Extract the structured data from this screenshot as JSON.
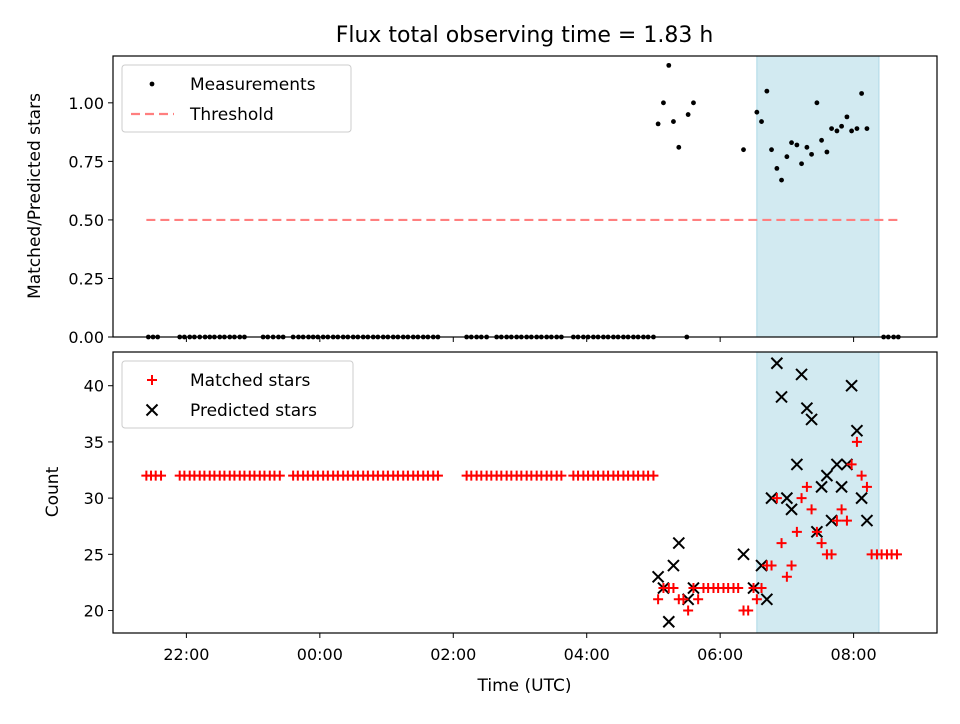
{
  "chart_data": [
    {
      "type": "scatter",
      "title": "Flux total observing time = 1.83 h",
      "ylabel": "Matched/Predicted stars",
      "ylim": [
        0,
        1.2
      ],
      "yticks": [
        0.0,
        0.25,
        0.5,
        0.75,
        1.0
      ],
      "ytick_labels": [
        "0.00",
        "0.25",
        "0.50",
        "0.75",
        "1.00"
      ],
      "highlight_band": {
        "x": [
          6.55,
          8.38
        ],
        "color": "#add8e6"
      },
      "colors": {
        "measurements": "#000000",
        "threshold": "#ff7f7f"
      },
      "legend": {
        "placement": "top-left",
        "entries": [
          "Measurements",
          "Threshold"
        ]
      },
      "series": [
        {
          "name": "Measurements",
          "marker": "dot",
          "x_zero": [
            -2.57,
            -2.5,
            -2.43,
            -2.1,
            -2.03,
            -1.95,
            -1.88,
            -1.8,
            -1.72,
            -1.65,
            -1.58,
            -1.5,
            -1.43,
            -1.35,
            -1.28,
            -1.2,
            -1.13,
            -0.85,
            -0.78,
            -0.7,
            -0.62,
            -0.55,
            -0.4,
            -0.32,
            -0.25,
            -0.17,
            -0.1,
            -0.03,
            0.05,
            0.12,
            0.2,
            0.27,
            0.35,
            0.42,
            0.5,
            0.57,
            0.65,
            0.72,
            0.8,
            0.87,
            0.95,
            1.02,
            1.1,
            1.17,
            1.25,
            1.32,
            1.4,
            1.47,
            1.55,
            1.62,
            1.7,
            1.77,
            2.2,
            2.27,
            2.35,
            2.42,
            2.5,
            2.65,
            2.72,
            2.8,
            2.87,
            2.95,
            3.02,
            3.1,
            3.17,
            3.25,
            3.32,
            3.4,
            3.47,
            3.55,
            3.62,
            3.8,
            3.87,
            3.95,
            4.02,
            4.1,
            4.17,
            4.25,
            4.32,
            4.4,
            4.47,
            4.55,
            4.62,
            4.7,
            4.77,
            4.85,
            4.92,
            5.0,
            5.5,
            8.45,
            8.52,
            8.6,
            8.67
          ],
          "points": [
            [
              5.07,
              0.91
            ],
            [
              5.15,
              1.0
            ],
            [
              5.23,
              1.16
            ],
            [
              5.3,
              0.92
            ],
            [
              5.38,
              0.81
            ],
            [
              5.52,
              0.95
            ],
            [
              5.6,
              1.0
            ],
            [
              6.35,
              0.8
            ],
            [
              6.55,
              0.96
            ],
            [
              6.62,
              0.92
            ],
            [
              6.7,
              1.05
            ],
            [
              6.77,
              0.8
            ],
            [
              6.85,
              0.72
            ],
            [
              6.92,
              0.67
            ],
            [
              7.0,
              0.77
            ],
            [
              7.07,
              0.83
            ],
            [
              7.15,
              0.82
            ],
            [
              7.22,
              0.74
            ],
            [
              7.3,
              0.81
            ],
            [
              7.37,
              0.78
            ],
            [
              7.45,
              1.0
            ],
            [
              7.52,
              0.84
            ],
            [
              7.6,
              0.79
            ],
            [
              7.67,
              0.89
            ],
            [
              7.75,
              0.88
            ],
            [
              7.82,
              0.9
            ],
            [
              7.9,
              0.94
            ],
            [
              7.97,
              0.88
            ],
            [
              8.05,
              0.89
            ],
            [
              8.12,
              1.04
            ],
            [
              8.2,
              0.89
            ]
          ]
        },
        {
          "name": "Threshold",
          "marker": "dashed-line",
          "x": [
            -2.6,
            8.7
          ],
          "values": [
            0.5,
            0.5
          ]
        }
      ]
    },
    {
      "type": "scatter",
      "ylabel": "Count",
      "xlabel": "Time (UTC)",
      "ylim": [
        18,
        43
      ],
      "yticks": [
        20,
        25,
        30,
        35,
        40
      ],
      "xlim": [
        -3.1,
        9.25
      ],
      "xticks": [
        -2,
        0,
        2,
        4,
        6,
        8
      ],
      "xtick_labels": [
        "22:00",
        "00:00",
        "02:00",
        "04:00",
        "06:00",
        "08:00"
      ],
      "highlight_band": {
        "x": [
          6.55,
          8.38
        ],
        "color": "#add8e6"
      },
      "colors": {
        "matched": "#ff0000",
        "predicted": "#000000"
      },
      "legend": {
        "placement": "top-left",
        "entries": [
          "Matched stars",
          "Predicted stars"
        ]
      },
      "series": [
        {
          "name": "Matched stars",
          "marker": "plus",
          "constant_value": 32,
          "constant_x": [
            -2.6,
            -2.53,
            -2.46,
            -2.38,
            -2.1,
            -2.03,
            -1.95,
            -1.88,
            -1.8,
            -1.73,
            -1.65,
            -1.58,
            -1.5,
            -1.43,
            -1.35,
            -1.28,
            -1.2,
            -1.13,
            -1.05,
            -0.98,
            -0.9,
            -0.83,
            -0.75,
            -0.68,
            -0.6,
            -0.4,
            -0.33,
            -0.25,
            -0.18,
            -0.1,
            -0.03,
            0.05,
            0.12,
            0.2,
            0.27,
            0.35,
            0.42,
            0.5,
            0.57,
            0.65,
            0.72,
            0.8,
            0.87,
            0.95,
            1.02,
            1.1,
            1.17,
            1.25,
            1.32,
            1.4,
            1.47,
            1.55,
            1.62,
            1.7,
            1.77,
            2.2,
            2.27,
            2.35,
            2.42,
            2.5,
            2.57,
            2.65,
            2.72,
            2.8,
            2.87,
            2.95,
            3.02,
            3.1,
            3.17,
            3.25,
            3.32,
            3.4,
            3.47,
            3.55,
            3.62,
            3.8,
            3.87,
            3.95,
            4.02,
            4.1,
            4.17,
            4.25,
            4.32,
            4.4,
            4.47,
            4.55,
            4.62,
            4.7,
            4.77,
            4.85,
            4.92,
            5.0
          ],
          "points": [
            [
              5.07,
              21
            ],
            [
              5.15,
              22
            ],
            [
              5.23,
              22
            ],
            [
              5.3,
              22
            ],
            [
              5.38,
              21
            ],
            [
              5.45,
              21
            ],
            [
              5.52,
              20
            ],
            [
              5.6,
              22
            ],
            [
              5.67,
              21
            ],
            [
              5.75,
              22
            ],
            [
              5.82,
              22
            ],
            [
              5.9,
              22
            ],
            [
              5.97,
              22
            ],
            [
              6.05,
              22
            ],
            [
              6.12,
              22
            ],
            [
              6.2,
              22
            ],
            [
              6.27,
              22
            ],
            [
              6.35,
              20
            ],
            [
              6.42,
              20
            ],
            [
              6.5,
              22
            ],
            [
              6.55,
              21
            ],
            [
              6.62,
              22
            ],
            [
              6.7,
              24
            ],
            [
              6.77,
              24
            ],
            [
              6.85,
              30
            ],
            [
              6.92,
              26
            ],
            [
              7.0,
              23
            ],
            [
              7.07,
              24
            ],
            [
              7.15,
              27
            ],
            [
              7.22,
              30
            ],
            [
              7.3,
              31
            ],
            [
              7.37,
              29
            ],
            [
              7.45,
              27
            ],
            [
              7.52,
              26
            ],
            [
              7.6,
              25
            ],
            [
              7.67,
              25
            ],
            [
              7.75,
              28
            ],
            [
              7.82,
              29
            ],
            [
              7.9,
              28
            ],
            [
              7.97,
              33
            ],
            [
              8.05,
              35
            ],
            [
              8.12,
              32
            ],
            [
              8.2,
              31
            ],
            [
              8.27,
              25
            ],
            [
              8.35,
              25
            ],
            [
              8.42,
              25
            ],
            [
              8.5,
              25
            ],
            [
              8.57,
              25
            ],
            [
              8.65,
              25
            ]
          ]
        },
        {
          "name": "Predicted stars",
          "marker": "x",
          "points": [
            [
              5.07,
              23
            ],
            [
              5.15,
              22
            ],
            [
              5.23,
              19
            ],
            [
              5.3,
              24
            ],
            [
              5.38,
              26
            ],
            [
              5.52,
              21
            ],
            [
              5.6,
              22
            ],
            [
              6.35,
              25
            ],
            [
              6.5,
              22
            ],
            [
              6.62,
              24
            ],
            [
              6.7,
              21
            ],
            [
              6.77,
              30
            ],
            [
              6.85,
              42
            ],
            [
              6.92,
              39
            ],
            [
              7.0,
              30
            ],
            [
              7.07,
              29
            ],
            [
              7.15,
              33
            ],
            [
              7.22,
              41
            ],
            [
              7.3,
              38
            ],
            [
              7.37,
              37
            ],
            [
              7.45,
              27
            ],
            [
              7.52,
              31
            ],
            [
              7.6,
              32
            ],
            [
              7.67,
              28
            ],
            [
              7.75,
              33
            ],
            [
              7.82,
              31
            ],
            [
              7.9,
              33
            ],
            [
              7.97,
              40
            ],
            [
              8.05,
              36
            ],
            [
              8.12,
              30
            ],
            [
              8.2,
              28
            ]
          ]
        }
      ]
    }
  ]
}
